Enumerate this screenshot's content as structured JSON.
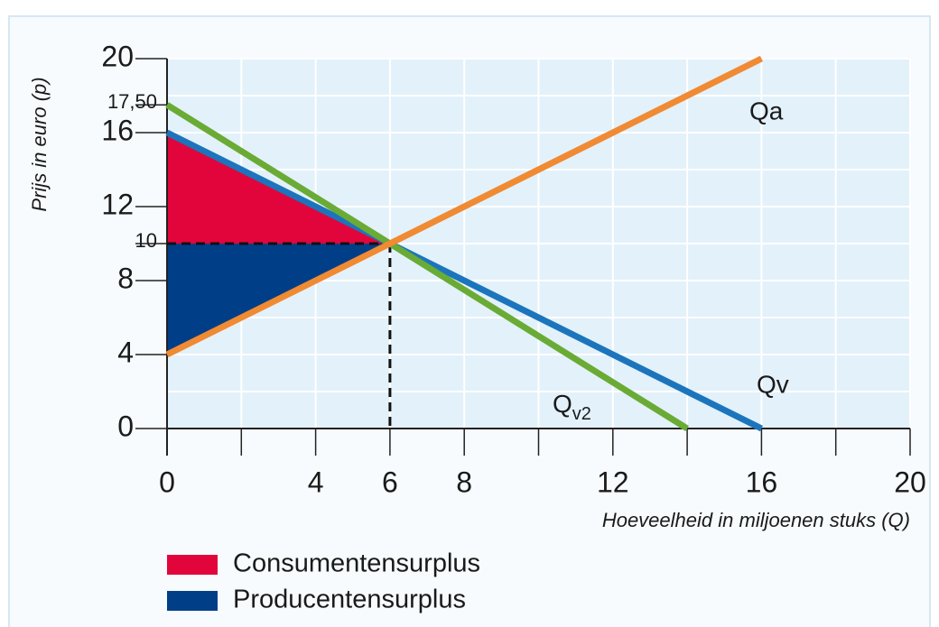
{
  "chart_data": {
    "type": "line",
    "xlabel": "Hoeveelheid in miljoenen stuks (Q)",
    "ylabel": "Prijs in euro (p)",
    "xlim": [
      0,
      20
    ],
    "ylim": [
      0,
      20
    ],
    "xticks": [
      0,
      4,
      6,
      8,
      12,
      16,
      20
    ],
    "yticks": [
      0,
      4,
      8,
      10,
      12,
      16,
      {
        "value": 17.5,
        "label": "17,50"
      },
      20
    ],
    "xgrid": [
      0,
      2,
      4,
      6,
      8,
      10,
      12,
      14,
      16,
      18,
      20
    ],
    "ygrid": [
      0,
      2,
      4,
      6,
      8,
      10,
      12,
      14,
      16,
      18,
      20
    ],
    "series": [
      {
        "name": "Qa",
        "color": "#f08a33",
        "x": [
          0,
          16
        ],
        "values": [
          4,
          20
        ]
      },
      {
        "name": "Qv",
        "color": "#1c75bc",
        "x": [
          0,
          16
        ],
        "values": [
          16,
          0
        ]
      },
      {
        "name": "Qv2",
        "color": "#6aab35",
        "x": [
          0,
          14
        ],
        "values": [
          17.5,
          0
        ]
      }
    ],
    "areas": [
      {
        "name": "Consumentensurplus",
        "color": "#e2053b",
        "x": [
          0,
          6,
          0
        ],
        "values": [
          16,
          10,
          10
        ]
      },
      {
        "name": "Producentensurplus",
        "color": "#003f87",
        "x": [
          0,
          6,
          0
        ],
        "values": [
          10,
          10,
          4
        ]
      }
    ],
    "equilibrium": {
      "x": 6,
      "y": 10
    }
  }
}
